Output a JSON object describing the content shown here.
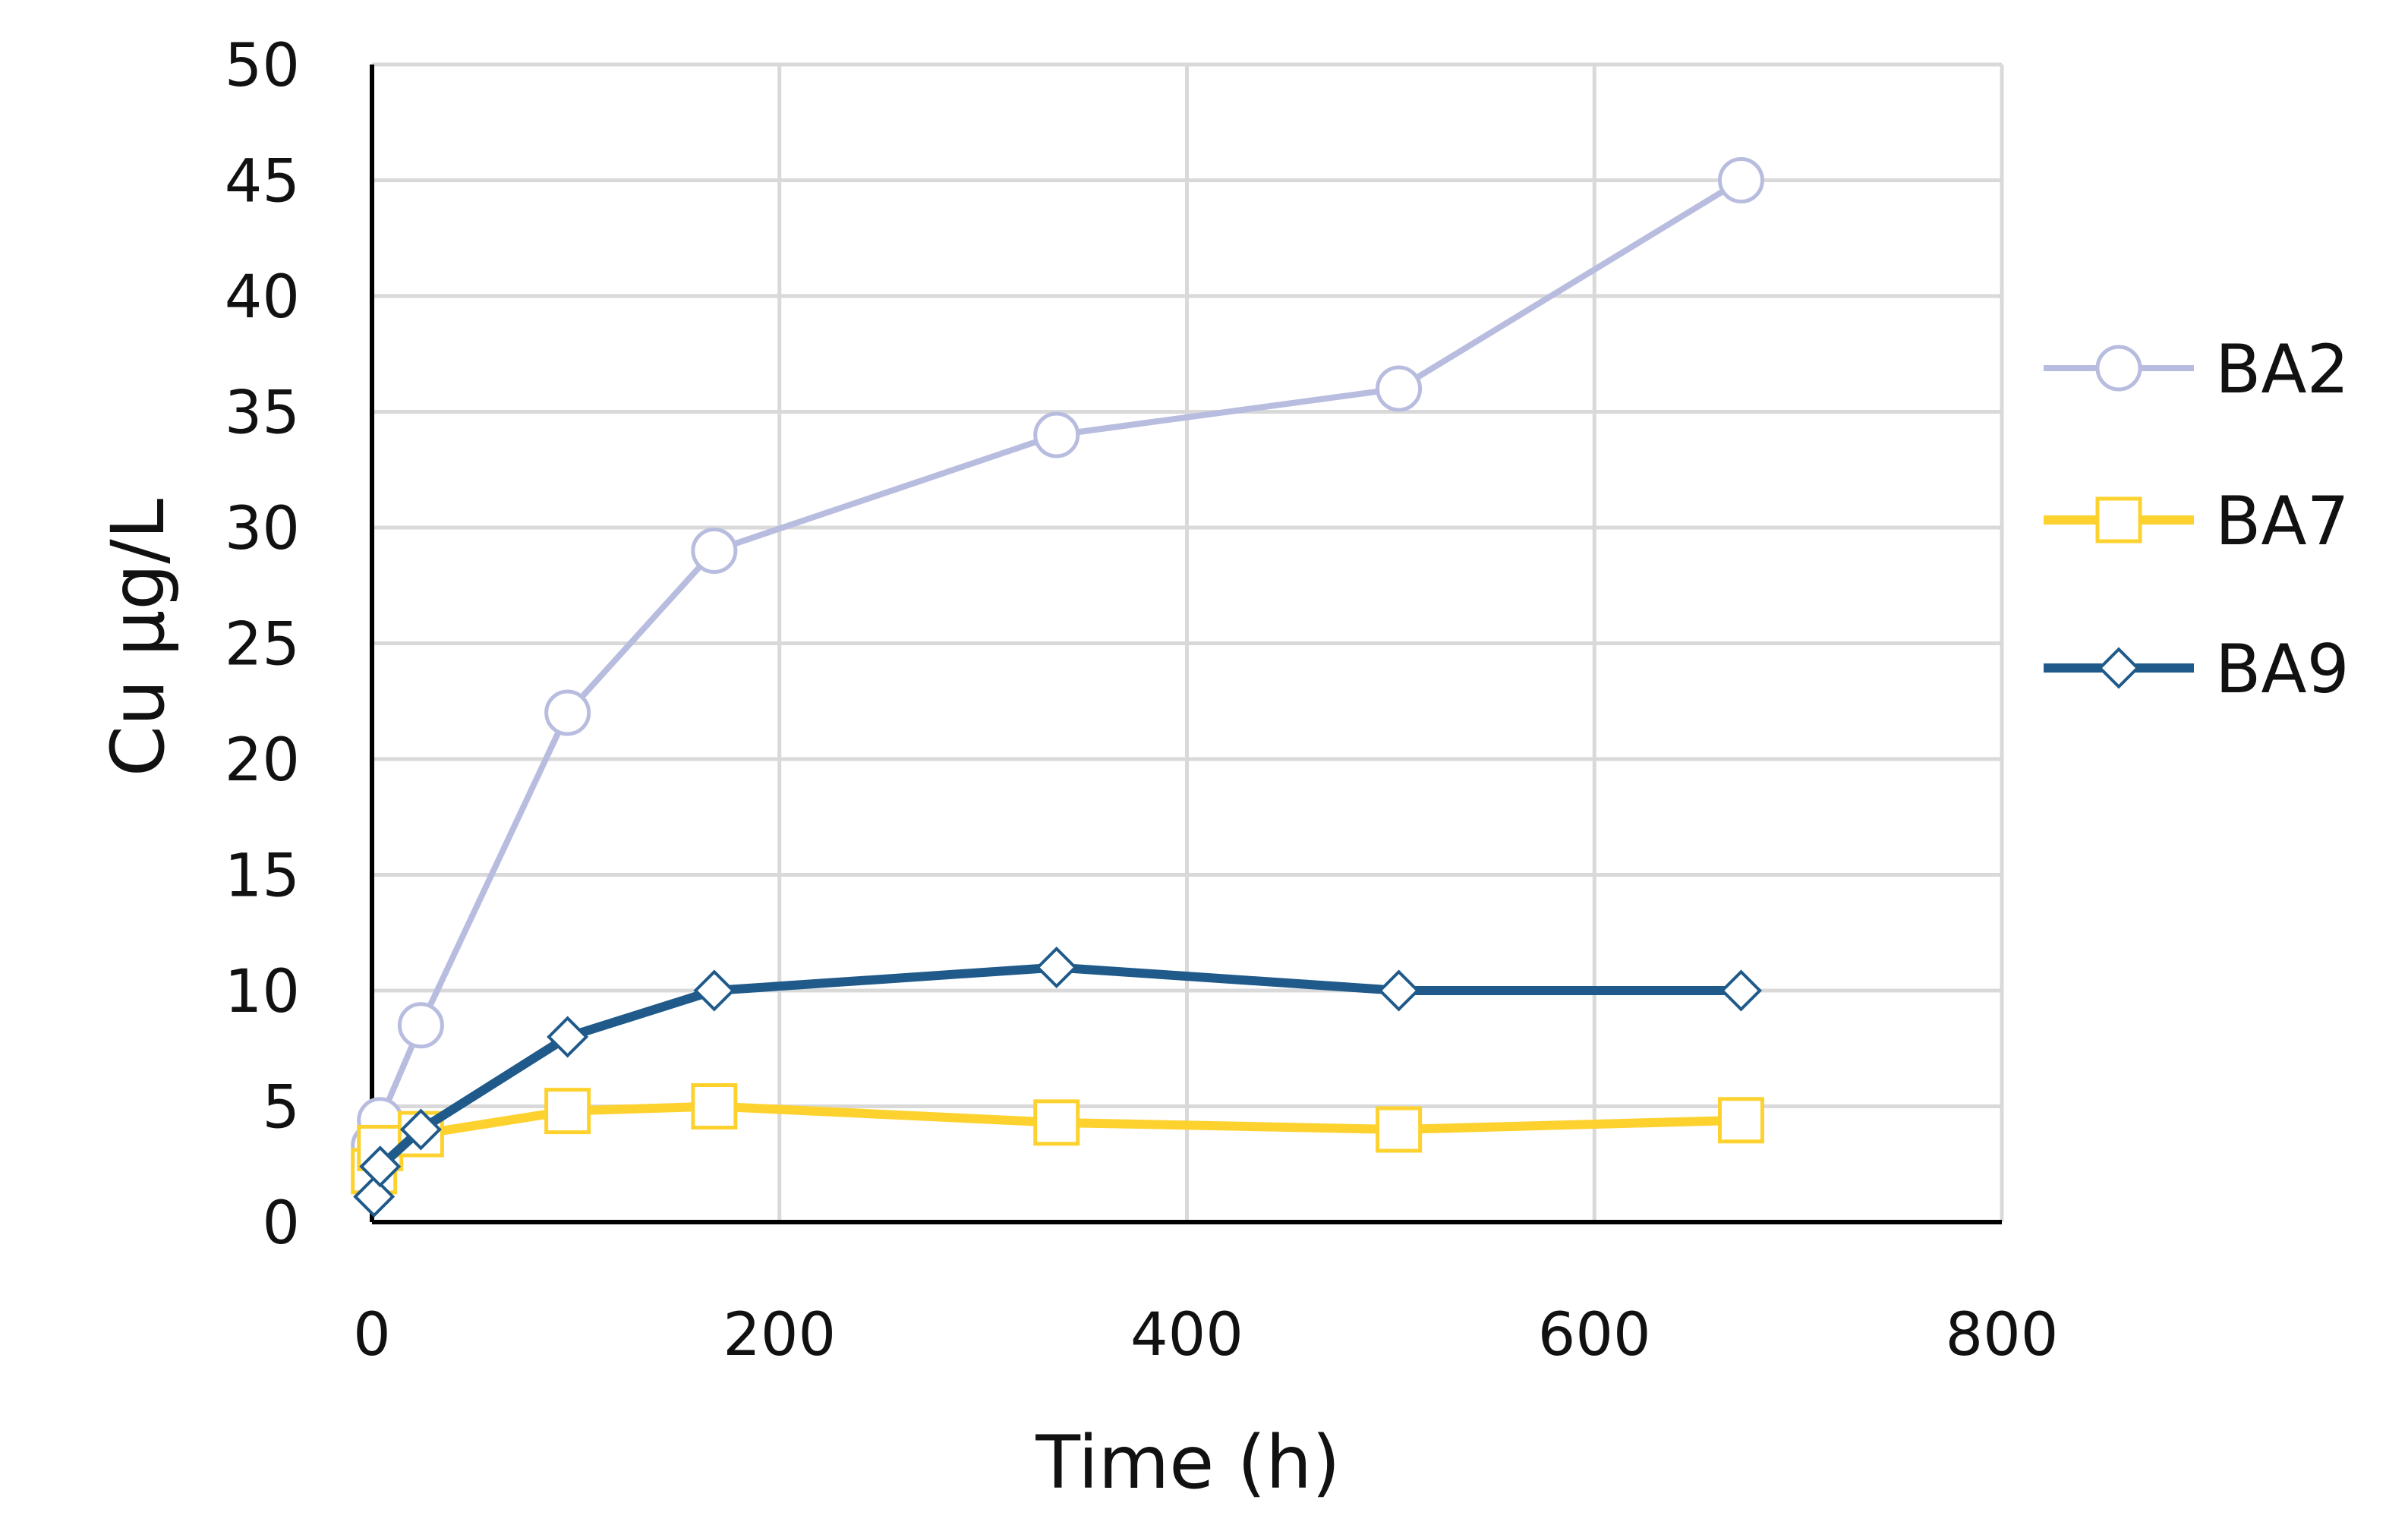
{
  "chart_data": {
    "type": "line",
    "xlabel": "Time (h)",
    "ylabel": "Cu µg/L",
    "xlim": [
      0,
      800
    ],
    "ylim": [
      0,
      50
    ],
    "xticks": [
      0,
      200,
      400,
      600,
      800
    ],
    "yticks": [
      0,
      5,
      10,
      15,
      20,
      25,
      30,
      35,
      40,
      45,
      50
    ],
    "grid": true,
    "legend_position": "right",
    "series": [
      {
        "name": "BA2",
        "color": "#b8bde0",
        "marker": "circle",
        "x": [
          1,
          4,
          24,
          96,
          168,
          336,
          504,
          672
        ],
        "y": [
          3.3,
          4.4,
          8.5,
          22,
          29,
          34,
          36,
          45
        ]
      },
      {
        "name": "BA7",
        "color": "#fdd22f",
        "marker": "square",
        "x": [
          1,
          4,
          24,
          96,
          168,
          336,
          504,
          672
        ],
        "y": [
          2.2,
          3.2,
          3.8,
          4.8,
          5.0,
          4.3,
          4.0,
          4.4
        ]
      },
      {
        "name": "BA9",
        "color": "#1f5a8a",
        "marker": "diamond",
        "x": [
          1,
          4,
          24,
          96,
          168,
          336,
          504,
          672
        ],
        "y": [
          1.1,
          2.4,
          4.0,
          8.0,
          10.0,
          11.0,
          10.0,
          10.0
        ]
      }
    ]
  }
}
